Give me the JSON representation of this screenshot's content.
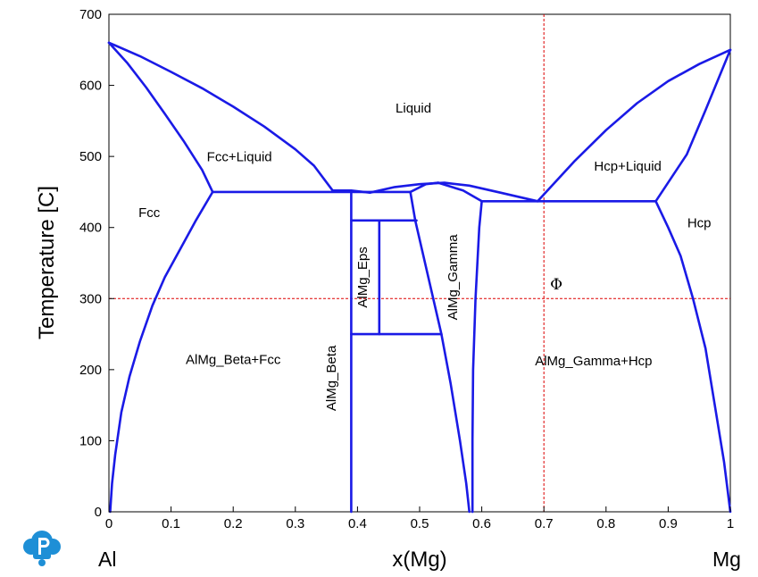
{
  "chart_data": {
    "type": "line",
    "ylabel": "Temperature [C]",
    "xlabel": "x(Mg)",
    "xlim": [
      0,
      1
    ],
    "ylim": [
      0,
      700
    ],
    "x_ticks": [
      "0",
      "0.1",
      "0.2",
      "0.3",
      "0.4",
      "0.5",
      "0.6",
      "0.7",
      "0.8",
      "0.9",
      "1"
    ],
    "y_ticks": [
      "0",
      "100",
      "200",
      "300",
      "400",
      "500",
      "600",
      "700"
    ],
    "element_left": "Al",
    "element_right": "Mg",
    "line_color": "#1a1ae6",
    "ref_line_color": "#dd0000",
    "reference_lines": {
      "x": 0.7,
      "y": 300
    },
    "marker_label": "Φ",
    "marker_point": {
      "x": 0.71,
      "y": 313
    },
    "region_labels": [
      {
        "text": "Liquid",
        "x": 0.49,
        "y": 562
      },
      {
        "text": "Fcc+Liquid",
        "x": 0.21,
        "y": 493
      },
      {
        "text": "Hcp+Liquid",
        "x": 0.835,
        "y": 480
      },
      {
        "text": "Fcc",
        "x": 0.065,
        "y": 415
      },
      {
        "text": "Hcp",
        "x": 0.95,
        "y": 400
      },
      {
        "text": "AlMg_Beta+Fcc",
        "x": 0.2,
        "y": 208
      },
      {
        "text": "AlMg_Gamma+Hcp",
        "x": 0.78,
        "y": 206
      },
      {
        "text": "AlMg_Beta",
        "x": 0.365,
        "y": 188,
        "rotate": -90
      },
      {
        "text": "AlMg_Eps",
        "x": 0.415,
        "y": 330,
        "rotate": -90
      },
      {
        "text": "AlMg_Gamma",
        "x": 0.56,
        "y": 330,
        "rotate": -90
      }
    ],
    "series": [
      {
        "values": [
          [
            0,
            660
          ],
          [
            0.03,
            631
          ],
          [
            0.06,
            597
          ],
          [
            0.09,
            560
          ],
          [
            0.12,
            522
          ],
          [
            0.15,
            481
          ],
          [
            0.167,
            450
          ]
        ]
      },
      {
        "values": [
          [
            0,
            660
          ],
          [
            0.05,
            641
          ],
          [
            0.1,
            619
          ],
          [
            0.15,
            596
          ],
          [
            0.2,
            570
          ],
          [
            0.25,
            542
          ],
          [
            0.3,
            510
          ],
          [
            0.33,
            487
          ],
          [
            0.36,
            452
          ]
        ]
      },
      {
        "values": [
          [
            0.167,
            450
          ],
          [
            0.14,
            410
          ],
          [
            0.115,
            370
          ],
          [
            0.09,
            330
          ],
          [
            0.07,
            290
          ],
          [
            0.05,
            240
          ],
          [
            0.033,
            190
          ],
          [
            0.02,
            140
          ],
          [
            0.01,
            80
          ],
          [
            0.005,
            40
          ],
          [
            0.002,
            0
          ]
        ]
      },
      {
        "values": [
          [
            0.167,
            450
          ],
          [
            0.485,
            450
          ]
        ]
      },
      {
        "values": [
          [
            0.36,
            452
          ],
          [
            0.39,
            452
          ],
          [
            0.42,
            449
          ]
        ]
      },
      {
        "values": [
          [
            0.42,
            449
          ],
          [
            0.46,
            457
          ],
          [
            0.5,
            461
          ],
          [
            0.54,
            463
          ],
          [
            0.58,
            459
          ],
          [
            0.63,
            449
          ],
          [
            0.69,
            437
          ]
        ]
      },
      {
        "values": [
          [
            0.39,
            448
          ],
          [
            0.39,
            0
          ]
        ]
      },
      {
        "values": [
          [
            0.39,
            410
          ],
          [
            0.495,
            410
          ]
        ]
      },
      {
        "values": [
          [
            0.435,
            410
          ],
          [
            0.435,
            250
          ]
        ]
      },
      {
        "values": [
          [
            0.39,
            250
          ],
          [
            0.535,
            250
          ]
        ]
      },
      {
        "values": [
          [
            0.485,
            450
          ],
          [
            0.493,
            410
          ],
          [
            0.535,
            250
          ],
          [
            0.55,
            180
          ],
          [
            0.565,
            100
          ],
          [
            0.575,
            40
          ],
          [
            0.58,
            0
          ]
        ]
      },
      {
        "values": [
          [
            0.485,
            450
          ],
          [
            0.51,
            461
          ],
          [
            0.53,
            463
          ]
        ]
      },
      {
        "values": [
          [
            0.53,
            463
          ],
          [
            0.57,
            452
          ],
          [
            0.6,
            437
          ]
        ]
      },
      {
        "values": [
          [
            0.6,
            437
          ],
          [
            0.596,
            400
          ],
          [
            0.59,
            300
          ],
          [
            0.586,
            200
          ],
          [
            0.585,
            100
          ],
          [
            0.585,
            0
          ]
        ]
      },
      {
        "values": [
          [
            0.6,
            437
          ],
          [
            0.88,
            437
          ]
        ]
      },
      {
        "values": [
          [
            0.69,
            437
          ],
          [
            0.75,
            494
          ],
          [
            0.8,
            537
          ],
          [
            0.85,
            575
          ],
          [
            0.9,
            606
          ],
          [
            0.95,
            630
          ],
          [
            1,
            650
          ]
        ]
      },
      {
        "values": [
          [
            0.88,
            437
          ],
          [
            0.93,
            503
          ],
          [
            0.96,
            565
          ],
          [
            1,
            650
          ]
        ]
      },
      {
        "values": [
          [
            0.88,
            437
          ],
          [
            0.9,
            400
          ],
          [
            0.92,
            360
          ],
          [
            0.94,
            300
          ],
          [
            0.96,
            230
          ],
          [
            0.975,
            150
          ],
          [
            0.99,
            70
          ],
          [
            1,
            0
          ]
        ]
      }
    ]
  }
}
